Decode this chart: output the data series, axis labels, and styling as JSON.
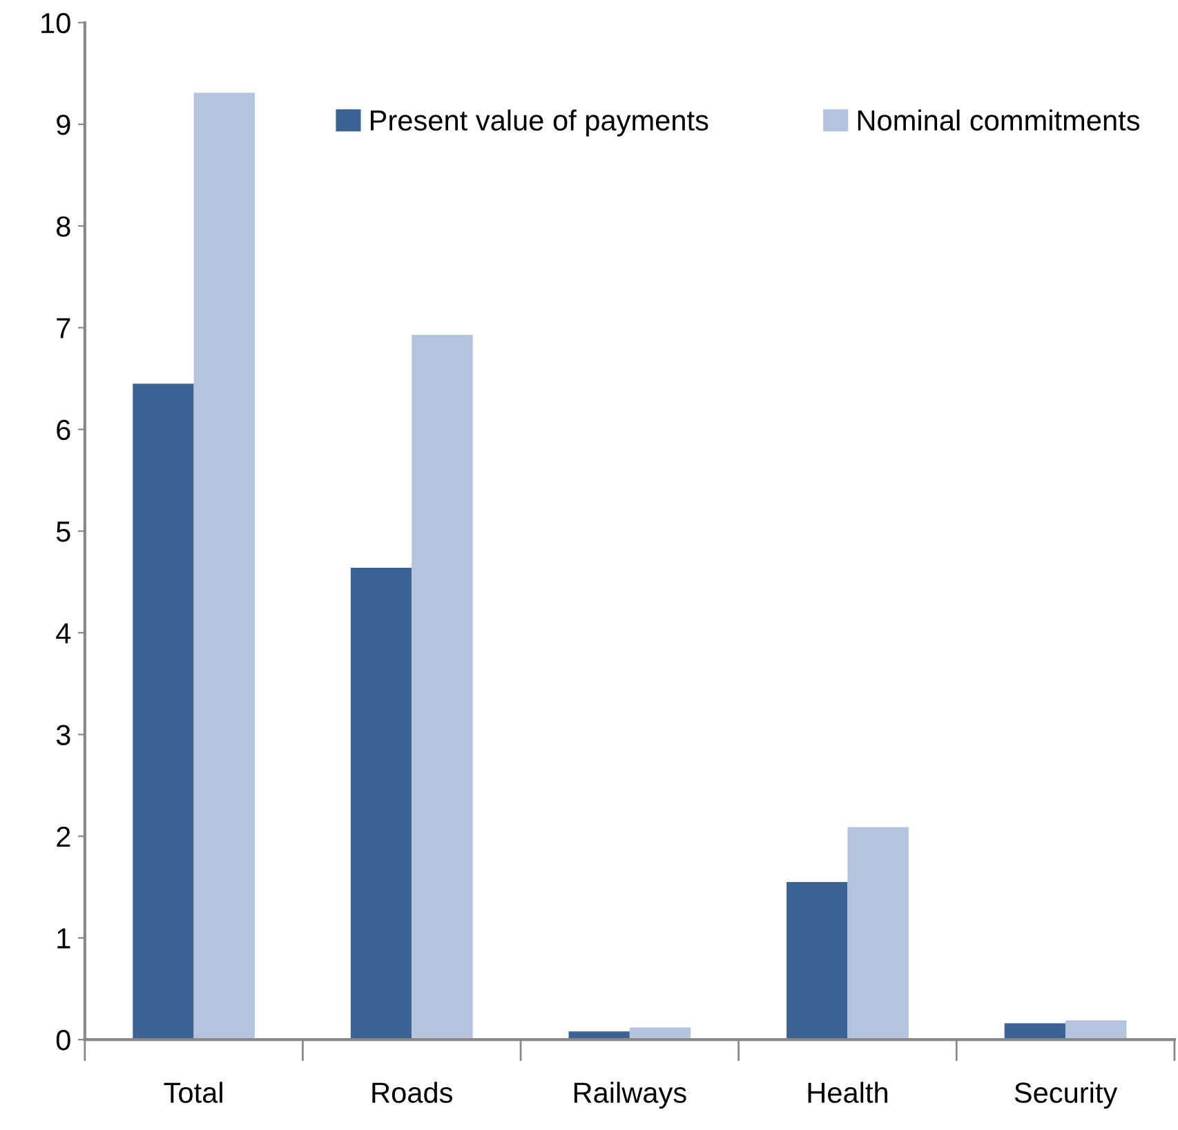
{
  "chart_data": {
    "type": "bar",
    "categories": [
      "Total",
      "Roads",
      "Railways",
      "Health",
      "Security"
    ],
    "series": [
      {
        "name": "Present value of payments",
        "color": "#3b6394",
        "values": [
          6.45,
          4.64,
          0.08,
          1.55,
          0.16
        ]
      },
      {
        "name": "Nominal commitments",
        "color": "#b4c3de",
        "values": [
          9.31,
          6.93,
          0.12,
          2.09,
          0.19
        ]
      }
    ],
    "ylim": [
      0,
      10
    ],
    "yticks": [
      0,
      1,
      2,
      3,
      4,
      5,
      6,
      7,
      8,
      9,
      10
    ],
    "grid": false,
    "legend": "top"
  }
}
